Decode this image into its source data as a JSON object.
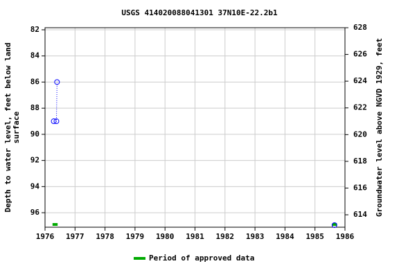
{
  "chart_data": {
    "type": "line",
    "title": "USGS 414020088041301 37N10E-22.2b1",
    "ylabel_lines": [
      "Depth to water level, feet below land",
      "surface"
    ],
    "y2label": "Groundwater level above NGVD 1929, feet",
    "xlim": [
      1976,
      1986
    ],
    "xticks": [
      1976,
      1977,
      1978,
      1979,
      1980,
      1981,
      1982,
      1983,
      1984,
      1985,
      1986
    ],
    "ylim": [
      81.84,
      97.11
    ],
    "yticks": [
      82,
      84,
      86,
      88,
      90,
      92,
      94,
      96
    ],
    "y2lim": [
      628,
      613.07
    ],
    "y2ticks": [
      614,
      616,
      618,
      620,
      622,
      624,
      626,
      628
    ],
    "grid": true,
    "series": [
      {
        "color": "#0000ff",
        "x": [
          1976.29,
          1976.38,
          1976.4
        ],
        "values": [
          89,
          89,
          86
        ]
      },
      {
        "color": "#0000ff",
        "x": [
          1985.65
        ],
        "values": [
          96.95
        ]
      }
    ],
    "approved_periods": {
      "name": "Period of approved data",
      "color": "#00aa00",
      "ranges": [
        [
          1976.25,
          1976.42
        ],
        [
          1985.58,
          1985.73
        ]
      ],
      "level": 96.9
    }
  }
}
